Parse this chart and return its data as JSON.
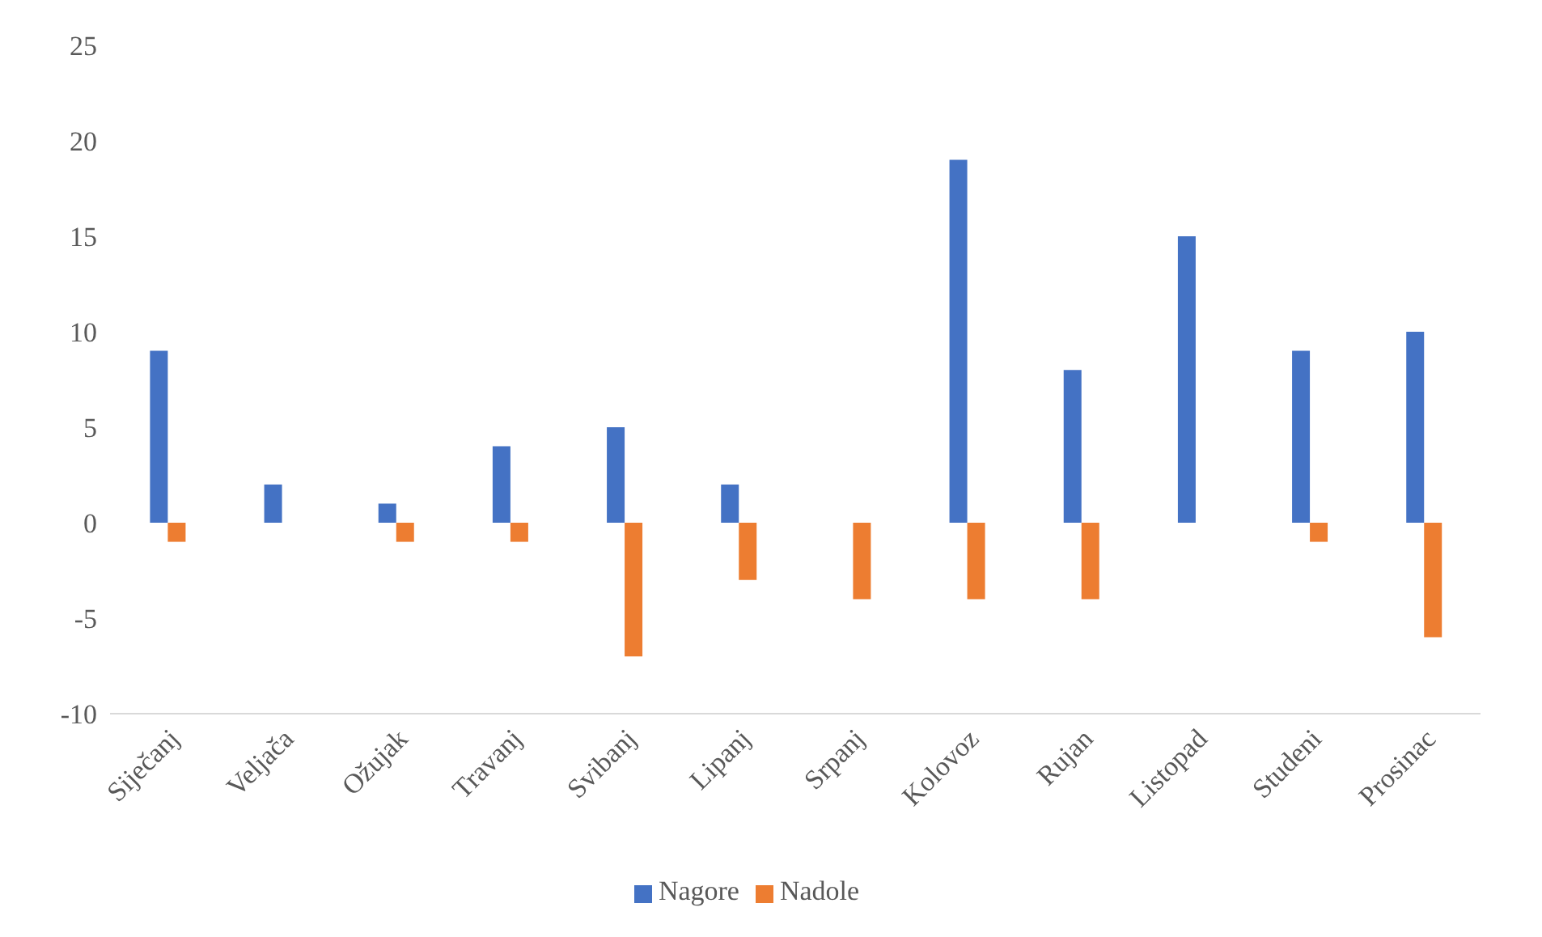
{
  "chart_data": {
    "type": "bar",
    "categories": [
      "Siječanj",
      "Veljača",
      "Ožujak",
      "Travanj",
      "Svibanj",
      "Lipanj",
      "Srpanj",
      "Kolovoz",
      "Rujan",
      "Listopad",
      "Studeni",
      "Prosinac"
    ],
    "series": [
      {
        "name": "Nagore",
        "color": "#4472c4",
        "values": [
          9,
          2,
          1,
          4,
          5,
          2,
          0,
          19,
          8,
          15,
          9,
          10
        ]
      },
      {
        "name": "Nadole",
        "color": "#ed7d31",
        "values": [
          -1,
          0,
          -1,
          -1,
          -7,
          -3,
          -4,
          -4,
          -4,
          0,
          -1,
          -6
        ]
      }
    ],
    "ylim": [
      -10,
      25
    ],
    "yticks": [
      -10,
      -5,
      0,
      5,
      10,
      15,
      20,
      25
    ],
    "legend": "bottom"
  }
}
